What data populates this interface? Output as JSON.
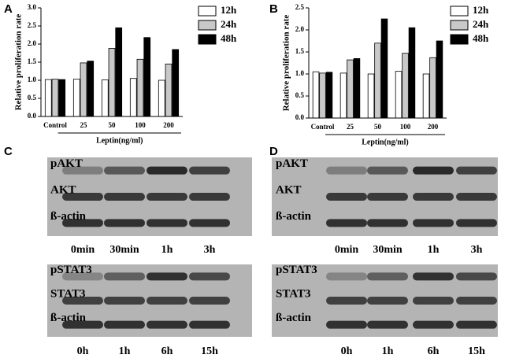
{
  "chart_data": [
    {
      "type": "bar",
      "panel_label": "A",
      "y_label": "Relative proliferation rate",
      "x_label": "Leptin(ng/ml)",
      "categories": [
        "Control",
        "25",
        "50",
        "100",
        "200"
      ],
      "series": [
        {
          "name": "12h",
          "color": "#ffffff",
          "values": [
            1.02,
            1.03,
            1.01,
            1.05,
            1.0
          ]
        },
        {
          "name": "24h",
          "color": "#c8c8c8",
          "values": [
            1.03,
            1.48,
            1.88,
            1.58,
            1.45
          ]
        },
        {
          "name": "48h",
          "color": "#000000",
          "values": [
            1.02,
            1.53,
            2.45,
            2.18,
            1.85
          ]
        }
      ],
      "ylim": [
        0,
        3
      ],
      "yticks": [
        {
          "value": 0,
          "label": "0.0"
        },
        0.5,
        {
          "value": 1,
          "label": "1.0"
        },
        1.5,
        {
          "value": 2,
          "label": "2.0"
        },
        2.5,
        {
          "value": 3,
          "label": "3.0"
        }
      ]
    },
    {
      "type": "bar",
      "panel_label": "B",
      "y_label": "Relative proliferation rate",
      "x_label": "Leptin(ng/ml)",
      "categories": [
        "Control",
        "25",
        "50",
        "100",
        "200"
      ],
      "series": [
        {
          "name": "12h",
          "color": "#ffffff",
          "values": [
            1.05,
            1.02,
            1.0,
            1.06,
            1.0
          ]
        },
        {
          "name": "24h",
          "color": "#c8c8c8",
          "values": [
            1.02,
            1.32,
            1.7,
            1.47,
            1.37
          ]
        },
        {
          "name": "48h",
          "color": "#000000",
          "values": [
            1.04,
            1.35,
            2.25,
            2.05,
            1.75
          ]
        }
      ],
      "ylim": [
        0,
        2.5
      ],
      "yticks": [
        {
          "value": 0,
          "label": "0.0"
        },
        0.5,
        {
          "value": 1,
          "label": "1.0"
        },
        1.5,
        {
          "value": 2,
          "label": "2.0"
        },
        2.5
      ]
    }
  ],
  "blots": [
    {
      "label": "C",
      "groups": [
        {
          "rows": [
            "pAKT",
            "AKT",
            "ß-actin"
          ],
          "lanes": [
            "0min",
            "30min",
            "1h",
            "3h"
          ]
        },
        {
          "rows": [
            "pSTAT3",
            "STAT3",
            "ß-actin"
          ],
          "lanes": [
            "0h",
            "1h",
            "6h",
            "15h"
          ]
        }
      ]
    },
    {
      "label": "D",
      "groups": [
        {
          "rows": [
            "pAKT",
            "AKT",
            "ß-actin"
          ],
          "lanes": [
            "0min",
            "30min",
            "1h",
            "3h"
          ]
        },
        {
          "rows": [
            "pSTAT3",
            "STAT3",
            "ß-actin"
          ],
          "lanes": [
            "0h",
            "1h",
            "6h",
            "15h"
          ]
        }
      ]
    }
  ]
}
